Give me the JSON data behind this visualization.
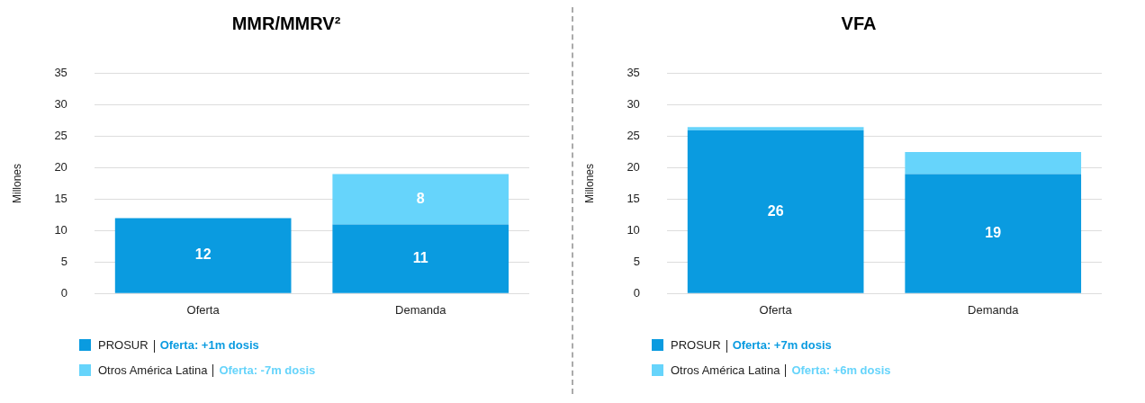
{
  "chart_data": [
    {
      "type": "bar",
      "title": "MMR/MMRV²",
      "ylabel": "Millones",
      "categories": [
        "Oferta",
        "Demanda"
      ],
      "stacked": true,
      "ylim": [
        0,
        35
      ],
      "yticks": [
        0,
        5,
        10,
        15,
        20,
        25,
        30,
        35
      ],
      "grid": "y",
      "legend": "bottom",
      "series": [
        {
          "name": "PROSUR",
          "color": "#0a9be0",
          "values": [
            12,
            11
          ],
          "value_labels": [
            "12",
            "11"
          ]
        },
        {
          "name": "Otros América Latina",
          "color": "#66d4fb",
          "values": [
            0,
            8
          ],
          "value_labels": [
            null,
            "8"
          ]
        }
      ],
      "annotations": [
        "Oferta: +1m dosis",
        "Oferta: -7m dosis"
      ]
    },
    {
      "type": "bar",
      "title": "VFA",
      "ylabel": "Millones",
      "categories": [
        "Oferta",
        "Demanda"
      ],
      "stacked": true,
      "ylim": [
        0,
        35
      ],
      "yticks": [
        0,
        5,
        10,
        15,
        20,
        25,
        30,
        35
      ],
      "grid": "y",
      "legend": "bottom",
      "series": [
        {
          "name": "PROSUR",
          "color": "#0a9be0",
          "values": [
            26,
            19
          ],
          "value_labels": [
            "26",
            "19"
          ]
        },
        {
          "name": "Otros América Latina",
          "color": "#66d4fb",
          "values": [
            0.5,
            3.5
          ],
          "value_labels": [
            null,
            null
          ]
        }
      ],
      "annotations": [
        "Oferta: +7m dosis",
        "Oferta: +6m dosis"
      ]
    }
  ]
}
